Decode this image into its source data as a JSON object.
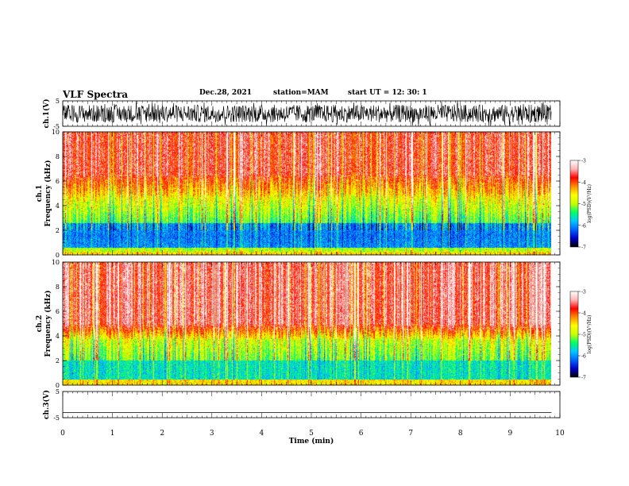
{
  "header": {
    "title": "VLF Spectra",
    "date": "Dec.28, 2021",
    "station": "station=MAM",
    "start_ut": "start  UT =   12: 30: 1"
  },
  "chart_data": [
    {
      "type": "line",
      "panel": "waveform-ch1",
      "ylabel": "ch.1(V)",
      "ylim": [
        -5,
        5
      ],
      "yticks": [
        5,
        -5
      ],
      "xlim": [
        0,
        10
      ]
    },
    {
      "type": "heatmap",
      "panel": "spectrogram-ch1",
      "ylabel": "ch.1\nFrequency (kHz)",
      "ylabel_lines": [
        "ch.1",
        "Frequency (kHz)"
      ],
      "ylim": [
        0,
        10
      ],
      "yticks": [
        0,
        2,
        4,
        6,
        8,
        10
      ],
      "xlim": [
        0,
        10
      ],
      "data_extent_x": [
        0,
        9.83
      ],
      "colorbar": {
        "label": "log(PSD)(V²/Hz)",
        "ticks": [
          -3,
          -4,
          -5,
          -6,
          -7
        ]
      }
    },
    {
      "type": "heatmap",
      "panel": "spectrogram-ch2",
      "ylabel": "ch.2\nFrequency (kHz)",
      "ylabel_lines": [
        "ch.2",
        "Frequency (kHz)"
      ],
      "ylim": [
        0,
        10
      ],
      "yticks": [
        0,
        2,
        4,
        6,
        8,
        10
      ],
      "xlim": [
        0,
        10
      ],
      "data_extent_x": [
        0,
        9.83
      ],
      "colorbar": {
        "label": "log(PSD)(V²/Hz)",
        "ticks": [
          -3,
          -4,
          -5,
          -6,
          -7
        ]
      }
    },
    {
      "type": "line",
      "panel": "waveform-ch3",
      "ylabel": "ch.3(V)",
      "ylim": [
        -5,
        5
      ],
      "yticks": [
        5,
        -5
      ],
      "xlim": [
        0,
        10
      ],
      "series": [
        {
          "x": [
            0,
            9.83
          ],
          "y": [
            -3,
            -3
          ]
        }
      ]
    }
  ],
  "x_axis": {
    "label": "Time  (min)",
    "ticks": [
      "0",
      "1",
      "2",
      "3",
      "4",
      "5",
      "6",
      "7",
      "8",
      "9",
      "10"
    ]
  },
  "colors": {
    "axis": "#000000",
    "colormap": [
      "#000000",
      "#0000c8",
      "#0064ff",
      "#00c8ff",
      "#00ff64",
      "#c8ff00",
      "#ffff00",
      "#ff8c00",
      "#ff0000",
      "#ffb4b4",
      "#ffffff"
    ]
  }
}
